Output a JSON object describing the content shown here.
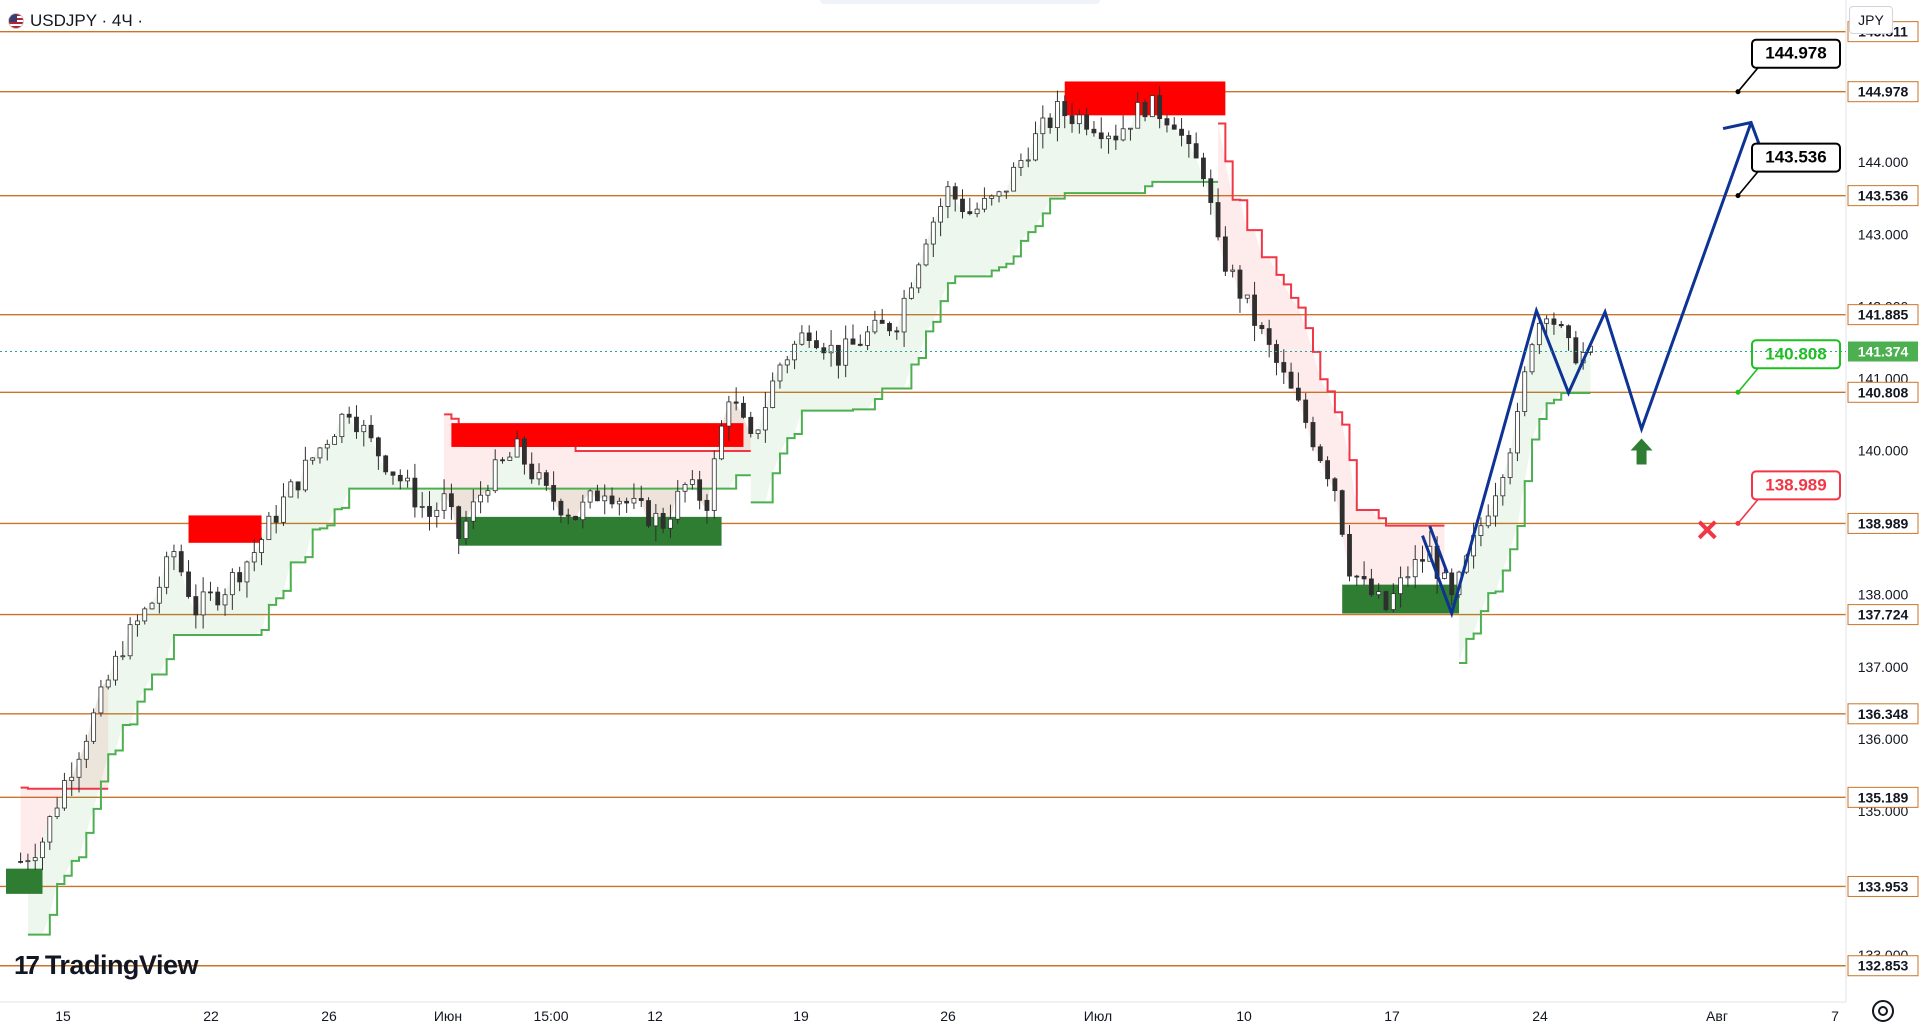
{
  "header": {
    "symbol_label": "USDJPY · 4Ч ·",
    "currency_button": "JPY"
  },
  "logo": {
    "text": "TradingView",
    "mark": "17"
  },
  "colors": {
    "bull": "#26a69a",
    "bear": "#ef5350",
    "level": "#c8752a",
    "forecast": "#0d3494",
    "supply": "#ff0000",
    "demand": "#2e7d32",
    "stop_green": "#4caf50",
    "stop_red": "#f23645"
  },
  "icons": {
    "flag": "us-jp-flag-icon",
    "settings": "gear-icon",
    "arrow": "up-arrow-icon",
    "cross": "cross-icon"
  },
  "chart_data": {
    "type": "candlestick",
    "title": "USDJPY · 4Ч",
    "ylim": [
      132.35,
      146.25
    ],
    "y_ticks": [
      "145.000",
      "144.000",
      "143.000",
      "142.000",
      "141.000",
      "140.000",
      "139.000",
      "138.000",
      "137.000",
      "136.000",
      "135.000",
      "134.000",
      "133.000"
    ],
    "x_ticks": [
      "15",
      "22",
      "26",
      "Июн",
      "15:00",
      "12",
      "19",
      "26",
      "Июл",
      "10",
      "17",
      "24",
      "Авг",
      "7"
    ],
    "levels": [
      145.811,
      144.978,
      143.536,
      141.885,
      140.808,
      138.989,
      137.724,
      136.348,
      135.189,
      133.953,
      132.853
    ],
    "level_labels": [
      "145.811",
      "144.978",
      "143.536",
      "141.885",
      "140.808",
      "138.989",
      "137.724",
      "136.348",
      "135.189",
      "133.953",
      "132.853"
    ],
    "current_price": 141.374,
    "current_price_label": "141.374",
    "callouts": [
      {
        "value": 144.978,
        "label": "144.978",
        "color": "#000000"
      },
      {
        "value": 143.536,
        "label": "143.536",
        "color": "#000000"
      },
      {
        "value": 140.808,
        "label": "140.808",
        "color": "#1fbf1f"
      },
      {
        "value": 138.989,
        "label": "138.989",
        "color": "#f23645"
      }
    ],
    "path_points": [
      [
        0,
        134.3
      ],
      [
        1.5,
        134.6
      ],
      [
        3,
        135.4
      ],
      [
        5,
        136.3
      ],
      [
        7,
        137.3
      ],
      [
        9,
        137.9
      ],
      [
        10.5,
        138.6
      ],
      [
        12,
        137.8
      ],
      [
        14,
        138.1
      ],
      [
        16,
        138.6
      ],
      [
        18,
        139.3
      ],
      [
        20,
        139.9
      ],
      [
        22.5,
        140.6
      ],
      [
        24,
        140.1
      ],
      [
        26,
        139.6
      ],
      [
        28,
        139.1
      ],
      [
        29,
        139.3
      ],
      [
        30,
        138.8
      ],
      [
        32,
        139.6
      ],
      [
        34,
        140.0
      ],
      [
        36,
        139.4
      ],
      [
        38,
        139.1
      ],
      [
        40,
        139.5
      ],
      [
        42,
        139.2
      ],
      [
        44,
        139.0
      ],
      [
        45.5,
        139.5
      ],
      [
        47,
        139.3
      ],
      [
        48.5,
        140.8
      ],
      [
        50,
        140.1
      ],
      [
        52,
        141.2
      ],
      [
        54,
        141.7
      ],
      [
        56,
        141.3
      ],
      [
        58,
        141.6
      ],
      [
        60,
        141.8
      ],
      [
        62,
        143.0
      ],
      [
        63.5,
        143.6
      ],
      [
        65,
        143.3
      ],
      [
        67,
        143.5
      ],
      [
        69,
        144.2
      ],
      [
        71,
        144.7
      ],
      [
        73,
        144.6
      ],
      [
        75,
        144.4
      ],
      [
        77,
        144.8
      ],
      [
        79,
        144.6
      ],
      [
        80,
        144.1
      ],
      [
        81,
        143.9
      ],
      [
        82,
        142.8
      ],
      [
        84,
        142.0
      ],
      [
        86,
        141.2
      ],
      [
        88,
        140.4
      ],
      [
        90,
        139.5
      ],
      [
        91,
        138.4
      ],
      [
        92,
        138.1
      ],
      [
        93.5,
        137.8
      ],
      [
        95,
        138.3
      ],
      [
        96.5,
        138.6
      ],
      [
        98,
        137.9
      ],
      [
        99.5,
        138.7
      ],
      [
        101,
        139.5
      ],
      [
        102.5,
        140.4
      ],
      [
        103.5,
        141.6
      ],
      [
        104.5,
        142.0
      ],
      [
        106,
        141.4
      ],
      [
        107.5,
        141.3
      ]
    ],
    "supply_zones": [
      {
        "from": 11.5,
        "to": 16.5,
        "low": 138.72,
        "high": 139.1
      },
      {
        "from": 29.5,
        "to": 49.5,
        "low": 140.05,
        "high": 140.38
      },
      {
        "from": 71.5,
        "to": 82.5,
        "low": 144.65,
        "high": 145.12
      }
    ],
    "demand_zones": [
      {
        "from": -1,
        "to": 1.5,
        "low": 133.85,
        "high": 134.2
      },
      {
        "from": 30,
        "to": 48,
        "low": 138.68,
        "high": 139.08
      },
      {
        "from": 90.5,
        "to": 98.5,
        "low": 137.74,
        "high": 138.14
      }
    ],
    "forecast_path": [
      [
        96,
        138.82
      ],
      [
        98,
        137.74
      ],
      [
        103.8,
        141.94
      ],
      [
        106,
        140.8
      ],
      [
        108.5,
        141.92
      ],
      [
        111,
        140.3
      ],
      [
        118.5,
        144.55
      ]
    ],
    "forecast_extra": [
      [
        96.5,
        138.95
      ],
      [
        97.7,
        138.3
      ]
    ],
    "x_range": [
      -1,
      125
    ]
  }
}
